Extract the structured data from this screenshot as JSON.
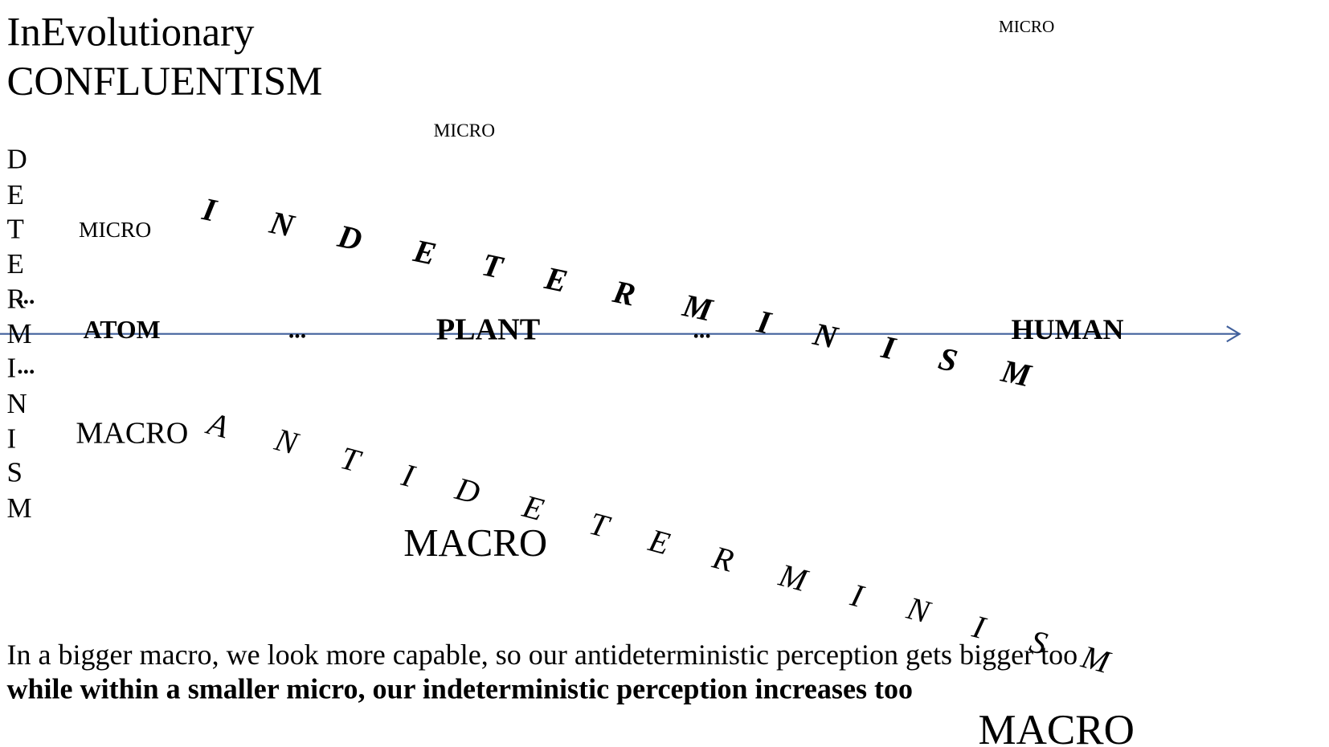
{
  "header": {
    "title_lines": [
      "InEvolutionary",
      "CONFLUENTISM"
    ]
  },
  "vertical_word": [
    "D",
    "E",
    "T",
    "E",
    "R",
    "M",
    "I",
    "N",
    "I",
    "S",
    "M"
  ],
  "side_dots": [
    "...",
    "..."
  ],
  "micro_labels": [
    "MICRO",
    "MICRO",
    "MICRO"
  ],
  "macro_labels": [
    "MACRO",
    "MACRO",
    "MACRO"
  ],
  "axis_labels": [
    "ATOM",
    "...",
    "PLANT",
    "...",
    "HUMAN"
  ],
  "upper_curve": [
    "I",
    "N",
    "D",
    "E",
    "T",
    "E",
    "R",
    "M",
    "I",
    "N",
    "I",
    "S",
    "M"
  ],
  "lower_curve": [
    "A",
    "N",
    "T",
    "I",
    "D",
    "E",
    "T",
    "E",
    "R",
    "M",
    "I",
    "N",
    "I",
    "S",
    "M"
  ],
  "footer": [
    "In a bigger macro, we look more capable, so our antideterministic perception gets bigger too",
    "while within a smaller micro, our indeterministic perception increases too"
  ]
}
